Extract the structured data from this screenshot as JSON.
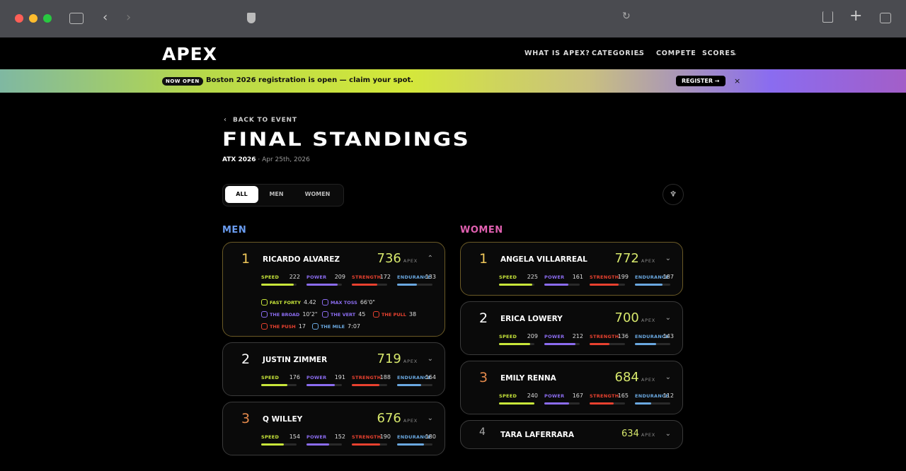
{
  "nav": {
    "logo": "APEX",
    "links": [
      "WHAT IS APEX?",
      "CATEGORIES",
      "COMPETE",
      "SCORES"
    ]
  },
  "banner": {
    "badge": "NOW OPEN",
    "text": "Boston 2026 registration is open — claim your spot.",
    "button": "REGISTER →"
  },
  "page": {
    "back": "BACK TO EVENT",
    "title": "FINAL STANDINGS",
    "event": "ATX 2026",
    "date": "· Apr 25th, 2026"
  },
  "tabs": [
    "ALL",
    "MEN",
    "WOMEN"
  ],
  "men": {
    "heading": "MEN",
    "athletes": [
      {
        "rank": 1,
        "name": "RICARDO ALVAREZ",
        "score": 736,
        "unit": "APEX",
        "stats": [
          {
            "label": "SPEED",
            "value": 222
          },
          {
            "label": "POWER",
            "value": 209
          },
          {
            "label": "STRENGTH",
            "value": 172
          },
          {
            "label": "ENDURANCE",
            "value": 133
          }
        ],
        "events": [
          {
            "label": "FAST FORTY",
            "value": "4.42"
          },
          {
            "label": "MAX TOSS",
            "value": "66'0\""
          },
          {
            "label": "THE BROAD",
            "value": "10'2\""
          },
          {
            "label": "THE VERT",
            "value": "45"
          },
          {
            "label": "THE PULL",
            "value": "38"
          },
          {
            "label": "THE PUSH",
            "value": "17"
          },
          {
            "label": "THE MILE",
            "value": "7:07"
          }
        ]
      },
      {
        "rank": 2,
        "name": "JUSTIN ZIMMER",
        "score": 719,
        "unit": "APEX",
        "stats": [
          {
            "label": "SPEED",
            "value": 176
          },
          {
            "label": "POWER",
            "value": 191
          },
          {
            "label": "STRENGTH",
            "value": 188
          },
          {
            "label": "ENDURANCE",
            "value": 164
          }
        ]
      },
      {
        "rank": 3,
        "name": "Q WILLEY",
        "score": 676,
        "unit": "APEX",
        "stats": [
          {
            "label": "SPEED",
            "value": 154
          },
          {
            "label": "POWER",
            "value": 152
          },
          {
            "label": "STRENGTH",
            "value": 190
          },
          {
            "label": "ENDURANCE",
            "value": 180
          }
        ]
      }
    ]
  },
  "women": {
    "heading": "WOMEN",
    "athletes": [
      {
        "rank": 1,
        "name": "ANGELA VILLARREAL",
        "score": 772,
        "unit": "APEX",
        "stats": [
          {
            "label": "SPEED",
            "value": 225
          },
          {
            "label": "POWER",
            "value": 161
          },
          {
            "label": "STRENGTH",
            "value": 199
          },
          {
            "label": "ENDURANCE",
            "value": 187
          }
        ]
      },
      {
        "rank": 2,
        "name": "ERICA LOWERY",
        "score": 700,
        "unit": "APEX",
        "stats": [
          {
            "label": "SPEED",
            "value": 209
          },
          {
            "label": "POWER",
            "value": 212
          },
          {
            "label": "STRENGTH",
            "value": 136
          },
          {
            "label": "ENDURANCE",
            "value": 143
          }
        ]
      },
      {
        "rank": 3,
        "name": "EMILY RENNA",
        "score": 684,
        "unit": "APEX",
        "stats": [
          {
            "label": "SPEED",
            "value": 240
          },
          {
            "label": "POWER",
            "value": 167
          },
          {
            "label": "STRENGTH",
            "value": 165
          },
          {
            "label": "ENDURANCE",
            "value": 112
          }
        ]
      },
      {
        "rank": 4,
        "name": "TARA LAFERRARA",
        "score": 634,
        "unit": "APEX"
      }
    ]
  }
}
